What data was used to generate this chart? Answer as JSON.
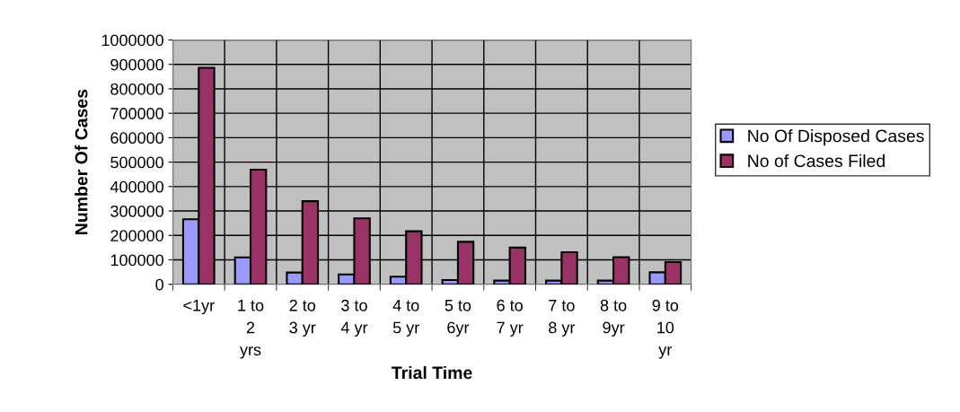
{
  "chart_data": {
    "type": "bar",
    "xlabel": "Trial Time",
    "ylabel": "Number Of Cases",
    "categories": [
      "<1yr",
      "1 to 2 yrs",
      "2 to 3 yr",
      "3 to 4 yr",
      "4 to 5 yr",
      "5 to 6yr",
      "6 to 7 yr",
      "7 to 8 yr",
      "8 to 9yr",
      "9 to 10 yr"
    ],
    "series": [
      {
        "name": "No Of Disposed Cases",
        "color": "#9999ff",
        "values": [
          266000,
          110000,
          48000,
          40000,
          31000,
          17000,
          15000,
          15000,
          15000,
          49000
        ]
      },
      {
        "name": "No of Cases Filed",
        "color": "#993366",
        "values": [
          886000,
          469000,
          340000,
          270000,
          217000,
          174000,
          150000,
          131000,
          111000,
          91000
        ]
      }
    ],
    "ylim": [
      0,
      1000000
    ],
    "yticks": [
      0,
      100000,
      200000,
      300000,
      400000,
      500000,
      600000,
      700000,
      800000,
      900000,
      1000000
    ],
    "grid": true,
    "legend": "right"
  }
}
